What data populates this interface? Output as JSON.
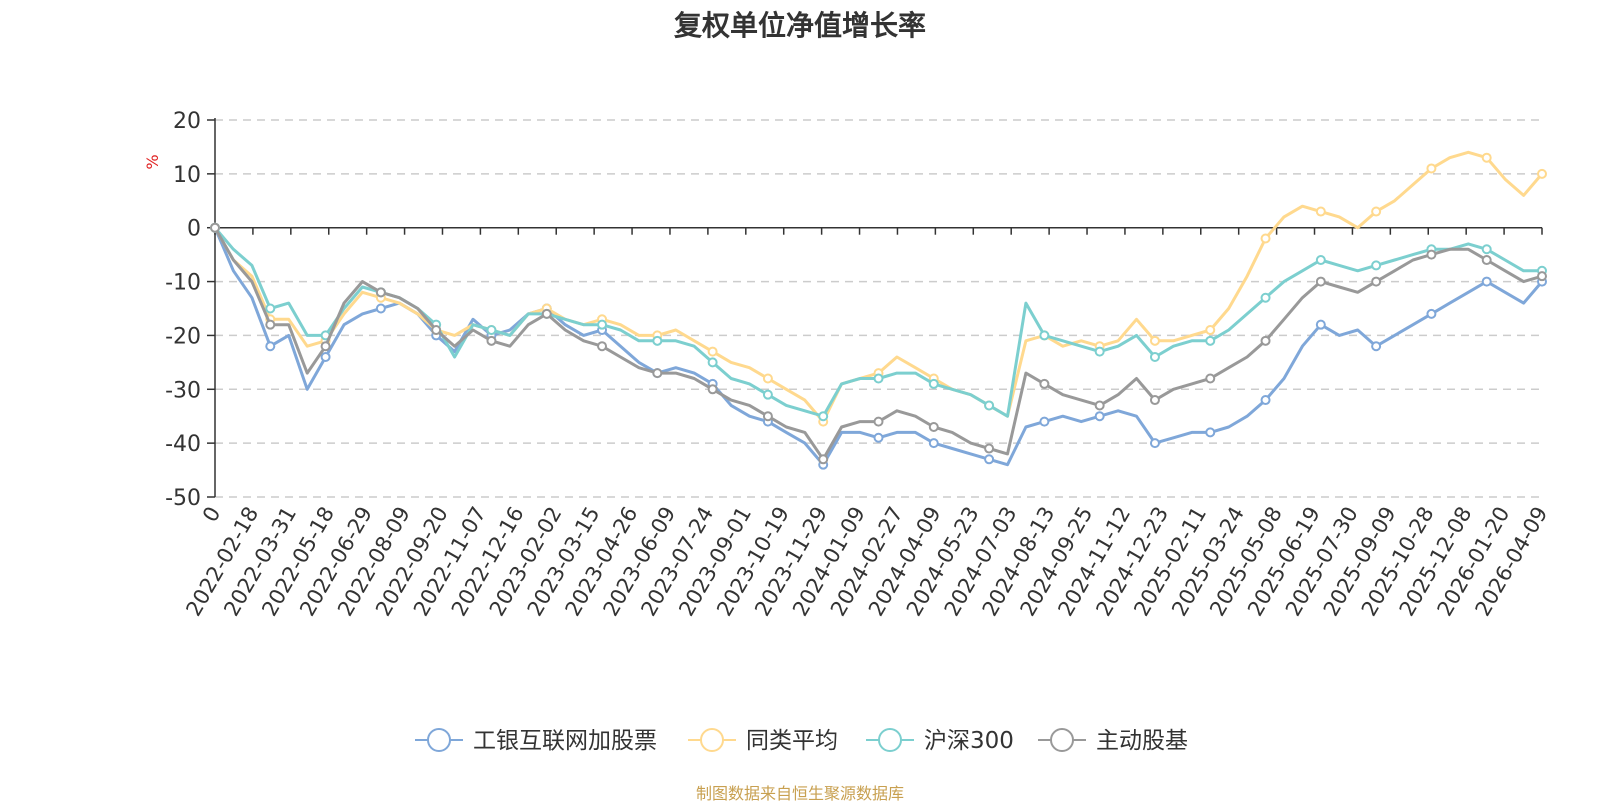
{
  "chart_data": {
    "type": "line",
    "title": "复权单位净值增长率",
    "ylabel": "%",
    "ylim": [
      -50,
      20
    ],
    "yticks": [
      20,
      10,
      0,
      -10,
      -20,
      -30,
      -40,
      -50
    ],
    "x_start_label": "0",
    "x_tick_labels": [
      "2022-02-18",
      "2022-03-31",
      "2022-05-18",
      "2022-06-29",
      "2022-08-09",
      "2022-09-20",
      "2022-11-07",
      "2022-12-16",
      "2023-02-02",
      "2023-03-15",
      "2023-04-26",
      "2023-06-09",
      "2023-07-24",
      "2023-09-01",
      "2023-10-19",
      "2023-11-29",
      "2024-01-09",
      "2024-02-27",
      "2024-04-09",
      "2024-05-23",
      "2024-07-03",
      "2024-08-13",
      "2024-09-25",
      "2024-11-12",
      "2024-12-23",
      "2025-02-11",
      "2025-03-24",
      "2025-05-08",
      "2025-06-19",
      "2025-07-30",
      "2025-09-09",
      "2025-10-28",
      "2025-12-08",
      "2026-01-20",
      "2026-04-09"
    ],
    "grid": true,
    "legend_position": "bottom-center",
    "source": "制图数据来自恒生聚源数据库",
    "x": [
      0,
      1,
      2,
      3,
      4,
      5,
      6,
      7,
      8,
      9,
      10,
      11,
      12,
      13,
      14,
      15,
      16,
      17,
      18,
      19,
      20,
      21,
      22,
      23,
      24,
      25,
      26,
      27,
      28,
      29,
      30,
      31,
      32,
      33,
      34,
      35,
      36,
      37,
      38,
      39,
      40,
      41,
      42,
      43,
      44,
      45,
      46,
      47,
      48,
      49,
      50,
      51,
      52,
      53,
      54,
      55,
      56,
      57,
      58,
      59,
      60,
      61,
      62,
      63,
      64,
      65,
      66,
      67,
      68,
      69,
      70,
      71,
      72
    ],
    "series": [
      {
        "name": "工银互联网加股票",
        "color": "#7fa7d9",
        "values": [
          0,
          -8,
          -13,
          -22,
          -20,
          -30,
          -24,
          -18,
          -16,
          -15,
          -14,
          -16,
          -20,
          -23,
          -17,
          -20,
          -19,
          -16,
          -15,
          -18,
          -20,
          -19,
          -22,
          -25,
          -27,
          -26,
          -27,
          -29,
          -33,
          -35,
          -36,
          -38,
          -40,
          -44,
          -38,
          -38,
          -39,
          -38,
          -38,
          -40,
          -41,
          -42,
          -43,
          -44,
          -37,
          -36,
          -35,
          -36,
          -35,
          -34,
          -35,
          -40,
          -39,
          -38,
          -38,
          -37,
          -35,
          -32,
          -28,
          -22,
          -18,
          -20,
          -19,
          -22,
          -20,
          -18,
          -16,
          -14,
          -12,
          -10,
          -12,
          -14,
          -10
        ]
      },
      {
        "name": "同类平均",
        "color": "#ffd98e",
        "values": [
          0,
          -6,
          -9,
          -17,
          -17,
          -22,
          -21,
          -16,
          -12,
          -13,
          -14,
          -16,
          -19,
          -20,
          -18,
          -19,
          -20,
          -16,
          -15,
          -17,
          -18,
          -17,
          -18,
          -20,
          -20,
          -19,
          -21,
          -23,
          -25,
          -26,
          -28,
          -30,
          -32,
          -36,
          -29,
          -28,
          -27,
          -24,
          -26,
          -28,
          -30,
          -31,
          -33,
          -35,
          -21,
          -20,
          -22,
          -21,
          -22,
          -21,
          -17,
          -21,
          -21,
          -20,
          -19,
          -15,
          -9,
          -2,
          2,
          4,
          3,
          2,
          0,
          3,
          5,
          8,
          11,
          13,
          14,
          13,
          9,
          6,
          10
        ]
      },
      {
        "name": "沪深300",
        "color": "#7ccfcf",
        "values": [
          0,
          -4,
          -7,
          -15,
          -14,
          -20,
          -20,
          -15,
          -11,
          -12,
          -13,
          -15,
          -18,
          -24,
          -18,
          -19,
          -20,
          -16,
          -16,
          -17,
          -18,
          -18,
          -19,
          -21,
          -21,
          -21,
          -22,
          -25,
          -28,
          -29,
          -31,
          -33,
          -34,
          -35,
          -29,
          -28,
          -28,
          -27,
          -27,
          -29,
          -30,
          -31,
          -33,
          -35,
          -14,
          -20,
          -21,
          -22,
          -23,
          -22,
          -20,
          -24,
          -22,
          -21,
          -21,
          -19,
          -16,
          -13,
          -10,
          -8,
          -6,
          -7,
          -8,
          -7,
          -6,
          -5,
          -4,
          -4,
          -3,
          -4,
          -6,
          -8,
          -8
        ]
      },
      {
        "name": "主动股基",
        "color": "#999999",
        "values": [
          0,
          -6,
          -10,
          -18,
          -18,
          -27,
          -22,
          -14,
          -10,
          -12,
          -13,
          -15,
          -19,
          -22,
          -19,
          -21,
          -22,
          -18,
          -16,
          -19,
          -21,
          -22,
          -24,
          -26,
          -27,
          -27,
          -28,
          -30,
          -32,
          -33,
          -35,
          -37,
          -38,
          -43,
          -37,
          -36,
          -36,
          -34,
          -35,
          -37,
          -38,
          -40,
          -41,
          -42,
          -27,
          -29,
          -31,
          -32,
          -33,
          -31,
          -28,
          -32,
          -30,
          -29,
          -28,
          -26,
          -24,
          -21,
          -17,
          -13,
          -10,
          -11,
          -12,
          -10,
          -8,
          -6,
          -5,
          -4,
          -4,
          -6,
          -8,
          -10,
          -9
        ]
      }
    ]
  }
}
